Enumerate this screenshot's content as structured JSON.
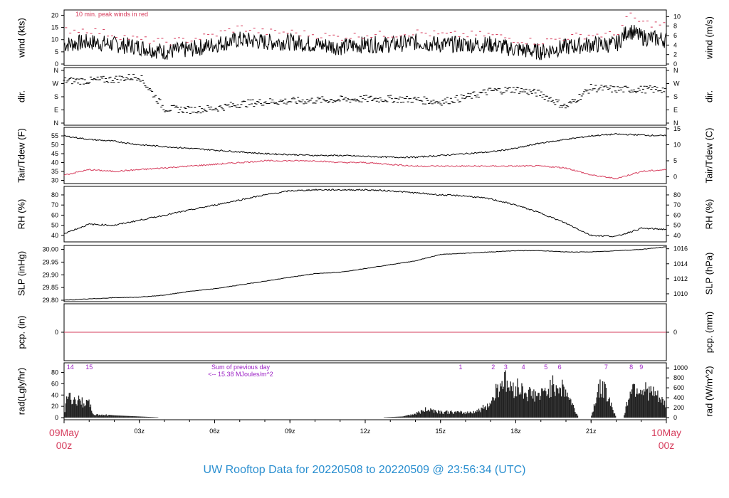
{
  "title": "UW Rooftop Data for 20220508  to  20220509 @ 23:56:34  (UTC)",
  "colors": {
    "title": "#2a8fd0",
    "time_start_end": "#d63c5c",
    "peak": "#d63c5c",
    "annotation": "#9b1fc4",
    "series": "#000000"
  },
  "x_axis": {
    "ticks": [
      {
        "hour": 0,
        "label": "09May",
        "sub": "00z",
        "major": true
      },
      {
        "hour": 3,
        "label": "03z"
      },
      {
        "hour": 6,
        "label": "06z"
      },
      {
        "hour": 9,
        "label": "09z"
      },
      {
        "hour": 12,
        "label": "12z"
      },
      {
        "hour": 15,
        "label": "15z"
      },
      {
        "hour": 18,
        "label": "18z"
      },
      {
        "hour": 21,
        "label": "21z"
      },
      {
        "hour": 24,
        "label": "10May",
        "sub": "00z",
        "major": true
      }
    ]
  },
  "chart_data": [
    {
      "type": "line",
      "id": "wind",
      "ylabel_left": "wind (kts)",
      "ylabel_right": "wind (m/s)",
      "left_ticks": [
        "0",
        "5",
        "10",
        "15",
        "20"
      ],
      "right_ticks": [
        "0",
        "2",
        "4",
        "6",
        "8",
        "10"
      ],
      "ylim": [
        0,
        21
      ],
      "annotation": "10 min. peak winds in red",
      "series": [
        {
          "name": "wind speed",
          "x": [
            0,
            1,
            2,
            3,
            4,
            5,
            6,
            7,
            8,
            9,
            10,
            11,
            12,
            13,
            14,
            15,
            16,
            17,
            18,
            19,
            20,
            21,
            22,
            22.5,
            23,
            24
          ],
          "values": [
            8,
            9,
            8,
            7,
            5,
            6,
            8,
            10,
            9,
            9,
            8,
            7,
            8,
            8,
            9,
            8,
            8,
            8,
            6,
            5,
            7,
            8,
            8,
            14,
            11,
            10
          ]
        },
        {
          "name": "10 min. peak winds",
          "x": [
            0,
            1,
            2,
            3,
            4,
            5,
            6,
            7,
            8,
            9,
            10,
            11,
            12,
            13,
            14,
            15,
            16,
            17,
            18,
            19,
            20,
            21,
            22,
            22.5,
            23,
            24
          ],
          "values": [
            14,
            14,
            12,
            10,
            9,
            10,
            12,
            15,
            13,
            13,
            12,
            11,
            12,
            12,
            13,
            12,
            12,
            12,
            10,
            9,
            11,
            12,
            12,
            20,
            17,
            16
          ]
        }
      ]
    },
    {
      "type": "scatter",
      "id": "dir",
      "ylabel_left": "dir.",
      "ylabel_right": "dir.",
      "left_ticks": [
        "N",
        "E",
        "S",
        "W",
        "N"
      ],
      "right_ticks": [
        "N",
        "E",
        "S",
        "W",
        "N"
      ],
      "ylim": [
        0,
        360
      ],
      "series": [
        {
          "name": "wind direction",
          "x": [
            0,
            1,
            2,
            3,
            4,
            5,
            6,
            7,
            8,
            9,
            10,
            11,
            12,
            13,
            14,
            15,
            16,
            17,
            18,
            19,
            20,
            21,
            22,
            23,
            24
          ],
          "values": [
            290,
            290,
            300,
            320,
            100,
            90,
            100,
            130,
            145,
            150,
            155,
            160,
            165,
            165,
            160,
            145,
            175,
            220,
            230,
            200,
            110,
            240,
            230,
            230,
            230
          ]
        }
      ]
    },
    {
      "type": "line",
      "id": "temp",
      "ylabel_left": "Tair/Tdew (F)",
      "ylabel_right": "Tair/Tdew (C)",
      "left_ticks": [
        "30",
        "35",
        "40",
        "45",
        "50",
        "55"
      ],
      "right_ticks": [
        "0",
        "5",
        "10",
        "15"
      ],
      "ylim": [
        29,
        59
      ],
      "series": [
        {
          "name": "Tair",
          "x": [
            0,
            1,
            2,
            3,
            4,
            5,
            6,
            7,
            8,
            9,
            10,
            11,
            12,
            13,
            14,
            15,
            16,
            17,
            18,
            19,
            20,
            21,
            22,
            23,
            24
          ],
          "values": [
            55,
            53,
            52,
            50,
            49,
            48,
            47,
            46,
            45,
            44.5,
            44,
            44,
            43.5,
            43,
            43,
            44,
            45,
            46,
            48,
            51,
            53,
            55,
            56,
            55.5,
            55
          ]
        },
        {
          "name": "Tdew",
          "x": [
            0,
            1,
            2,
            3,
            4,
            5,
            6,
            7,
            8,
            9,
            10,
            11,
            12,
            13,
            14,
            15,
            16,
            17,
            18,
            19,
            20,
            21,
            22,
            23,
            24
          ],
          "values": [
            33,
            36,
            35,
            36,
            37,
            38,
            39,
            40,
            41,
            41,
            41,
            40,
            40,
            39,
            38,
            38,
            38,
            38,
            38,
            38,
            37,
            33,
            31,
            35,
            36
          ]
        }
      ]
    },
    {
      "type": "line",
      "id": "rh",
      "ylabel_left": "RH (%)",
      "ylabel_right": "RH (%)",
      "left_ticks": [
        "40",
        "50",
        "60",
        "70",
        "80"
      ],
      "right_ticks": [
        "40",
        "50",
        "60",
        "70",
        "80"
      ],
      "ylim": [
        35,
        87
      ],
      "series": [
        {
          "name": "RH",
          "x": [
            0,
            1,
            2,
            3,
            4,
            5,
            6,
            7,
            8,
            9,
            10,
            11,
            12,
            13,
            14,
            15,
            16,
            17,
            18,
            19,
            20,
            21,
            22,
            23,
            24
          ],
          "values": [
            42,
            51,
            50,
            55,
            60,
            65,
            70,
            75,
            80,
            84,
            85,
            85,
            85,
            84,
            82,
            80,
            79,
            76,
            70,
            62,
            52,
            40,
            39,
            47,
            46
          ]
        }
      ]
    },
    {
      "type": "line",
      "id": "slp",
      "ylabel_left": "SLP (inHg)",
      "ylabel_right": "SLP (hPa)",
      "left_ticks": [
        "29.80",
        "29.85",
        "29.90",
        "29.95",
        "30.00"
      ],
      "right_ticks": [
        "1010",
        "1012",
        "1014",
        "1016"
      ],
      "ylim": [
        29.8,
        30.01
      ],
      "series": [
        {
          "name": "SLP",
          "x": [
            0,
            1,
            2,
            3,
            4,
            5,
            6,
            7,
            8,
            9,
            10,
            11,
            12,
            13,
            14,
            15,
            16,
            17,
            18,
            19,
            20,
            21,
            22,
            23,
            24
          ],
          "values": [
            29.8,
            29.805,
            29.81,
            29.812,
            29.82,
            29.835,
            29.845,
            29.86,
            29.875,
            29.89,
            29.905,
            29.91,
            29.925,
            29.94,
            29.955,
            29.98,
            29.985,
            29.99,
            29.995,
            29.995,
            29.99,
            29.99,
            29.995,
            30.0,
            30.01
          ]
        }
      ]
    },
    {
      "type": "line",
      "id": "pcp",
      "ylabel_left": "pcp. (in)",
      "ylabel_right": "pcp. (mm)",
      "left_ticks": [
        "0"
      ],
      "right_ticks": [
        "0"
      ],
      "ylim": [
        -1,
        1
      ],
      "series": [
        {
          "name": "pcp",
          "x": [
            0,
            24
          ],
          "values": [
            0,
            0
          ]
        }
      ]
    },
    {
      "type": "bar",
      "id": "rad",
      "ylabel_left": "rad(Lgly/hr)",
      "ylabel_right": "rad (W/m^2)",
      "left_ticks": [
        "0",
        "20",
        "40",
        "60",
        "80"
      ],
      "right_ticks": [
        "0",
        "200",
        "400",
        "600",
        "800",
        "1000"
      ],
      "ylim": [
        0,
        92
      ],
      "annotation_sum": "Sum of previous day",
      "annotation_value": "<-- 15.38 MJoules/m^2",
      "markers": [
        {
          "hour": 0.25,
          "label": "14"
        },
        {
          "hour": 1.0,
          "label": "15"
        },
        {
          "hour": 15.8,
          "label": "1"
        },
        {
          "hour": 17.1,
          "label": "2"
        },
        {
          "hour": 17.6,
          "label": "3"
        },
        {
          "hour": 18.3,
          "label": "4"
        },
        {
          "hour": 19.2,
          "label": "5"
        },
        {
          "hour": 19.75,
          "label": "6"
        },
        {
          "hour": 21.6,
          "label": "7"
        },
        {
          "hour": 22.6,
          "label": "8"
        },
        {
          "hour": 23.0,
          "label": "9"
        }
      ],
      "series": [
        {
          "name": "radiation",
          "x": [
            0,
            0.1,
            0.3,
            0.5,
            0.8,
            1.0,
            1.2,
            1.5,
            2.0,
            3.0,
            4.0,
            12.5,
            13.5,
            14.0,
            14.5,
            15.0,
            16.0,
            16.5,
            17.0,
            17.2,
            17.5,
            17.8,
            18.0,
            18.5,
            19.0,
            19.3,
            19.6,
            20.0,
            20.5,
            21.0,
            21.3,
            21.6,
            22.0,
            22.3,
            22.6,
            23.0,
            23.5,
            24.0
          ],
          "values": [
            0,
            45,
            40,
            35,
            32,
            28,
            5,
            6,
            4,
            2,
            0,
            0,
            2,
            8,
            18,
            12,
            10,
            14,
            30,
            55,
            80,
            60,
            65,
            50,
            45,
            60,
            70,
            55,
            0,
            0,
            60,
            55,
            0,
            0,
            65,
            60,
            50,
            25
          ]
        }
      ]
    }
  ]
}
